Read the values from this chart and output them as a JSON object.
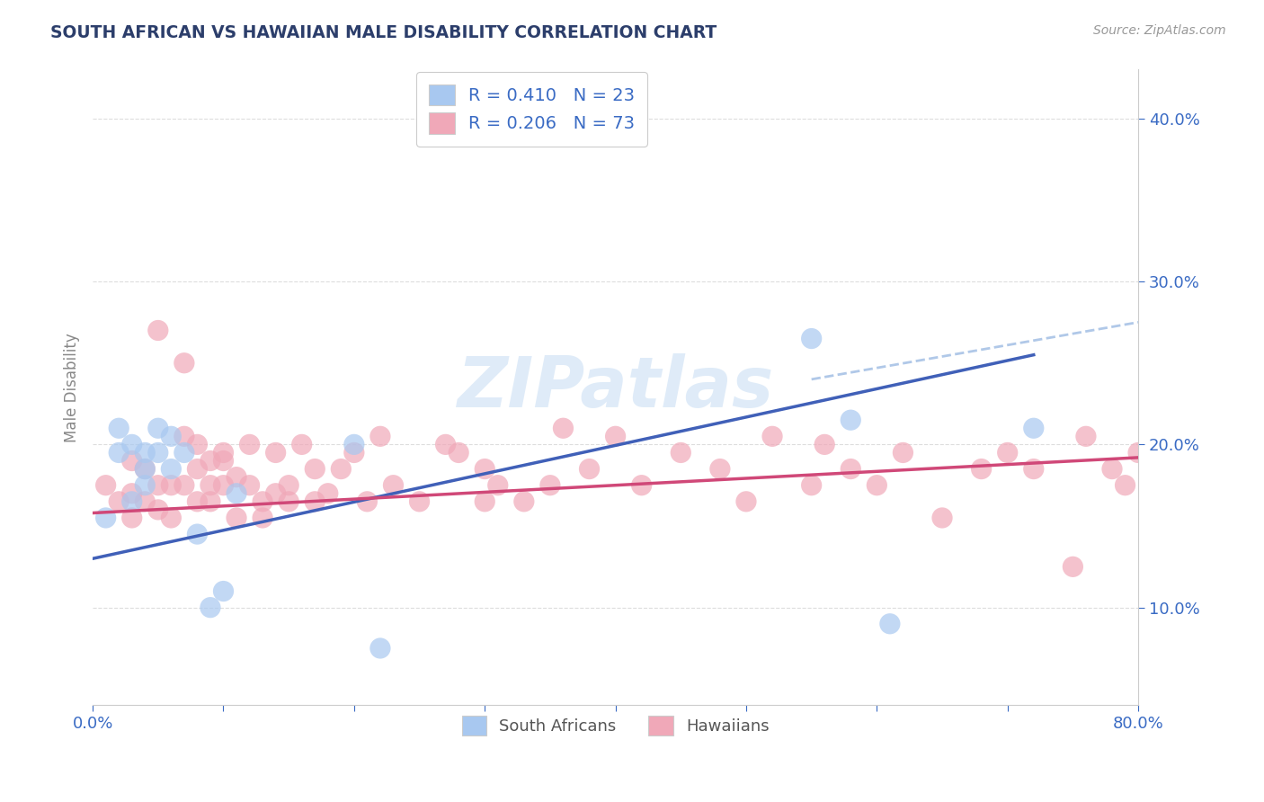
{
  "title": "SOUTH AFRICAN VS HAWAIIAN MALE DISABILITY CORRELATION CHART",
  "source": "Source: ZipAtlas.com",
  "xlabel": "",
  "ylabel": "Male Disability",
  "xlim": [
    0.0,
    0.8
  ],
  "ylim": [
    0.04,
    0.43
  ],
  "xticks": [
    0.0,
    0.1,
    0.2,
    0.3,
    0.4,
    0.5,
    0.6,
    0.7,
    0.8
  ],
  "yticks": [
    0.1,
    0.2,
    0.3,
    0.4
  ],
  "yticklabels": [
    "10.0%",
    "20.0%",
    "30.0%",
    "40.0%"
  ],
  "title_color": "#2c3e6b",
  "axis_label_color": "#888888",
  "tick_color": "#3a6bc4",
  "blue_color": "#a8c8f0",
  "pink_color": "#f0a8b8",
  "blue_line_color": "#4060b8",
  "pink_line_color": "#d04878",
  "dashed_line_color": "#b0c8e8",
  "legend_r1": "R = 0.410   N = 23",
  "legend_r2": "R = 0.206   N = 73",
  "legend_label1": "South Africans",
  "legend_label2": "Hawaiians",
  "watermark": "ZIPatlas",
  "blue_scatter_x": [
    0.01,
    0.02,
    0.02,
    0.03,
    0.03,
    0.04,
    0.04,
    0.04,
    0.05,
    0.05,
    0.06,
    0.06,
    0.07,
    0.08,
    0.09,
    0.1,
    0.11,
    0.2,
    0.22,
    0.55,
    0.58,
    0.61,
    0.72
  ],
  "blue_scatter_y": [
    0.155,
    0.195,
    0.21,
    0.165,
    0.2,
    0.195,
    0.185,
    0.175,
    0.21,
    0.195,
    0.205,
    0.185,
    0.195,
    0.145,
    0.1,
    0.11,
    0.17,
    0.2,
    0.075,
    0.265,
    0.215,
    0.09,
    0.21
  ],
  "pink_scatter_x": [
    0.01,
    0.02,
    0.03,
    0.03,
    0.03,
    0.04,
    0.04,
    0.05,
    0.05,
    0.05,
    0.06,
    0.06,
    0.07,
    0.07,
    0.07,
    0.08,
    0.08,
    0.08,
    0.09,
    0.09,
    0.09,
    0.1,
    0.1,
    0.1,
    0.11,
    0.11,
    0.12,
    0.12,
    0.13,
    0.13,
    0.14,
    0.14,
    0.15,
    0.15,
    0.16,
    0.17,
    0.17,
    0.18,
    0.19,
    0.2,
    0.21,
    0.22,
    0.23,
    0.25,
    0.27,
    0.28,
    0.3,
    0.3,
    0.31,
    0.33,
    0.35,
    0.36,
    0.38,
    0.4,
    0.42,
    0.45,
    0.48,
    0.5,
    0.52,
    0.55,
    0.56,
    0.58,
    0.6,
    0.62,
    0.65,
    0.68,
    0.7,
    0.72,
    0.75,
    0.76,
    0.78,
    0.79,
    0.8
  ],
  "pink_scatter_y": [
    0.175,
    0.165,
    0.19,
    0.17,
    0.155,
    0.165,
    0.185,
    0.27,
    0.175,
    0.16,
    0.175,
    0.155,
    0.175,
    0.25,
    0.205,
    0.185,
    0.165,
    0.2,
    0.19,
    0.175,
    0.165,
    0.19,
    0.175,
    0.195,
    0.18,
    0.155,
    0.175,
    0.2,
    0.165,
    0.155,
    0.17,
    0.195,
    0.175,
    0.165,
    0.2,
    0.165,
    0.185,
    0.17,
    0.185,
    0.195,
    0.165,
    0.205,
    0.175,
    0.165,
    0.2,
    0.195,
    0.185,
    0.165,
    0.175,
    0.165,
    0.175,
    0.21,
    0.185,
    0.205,
    0.175,
    0.195,
    0.185,
    0.165,
    0.205,
    0.175,
    0.2,
    0.185,
    0.175,
    0.195,
    0.155,
    0.185,
    0.195,
    0.185,
    0.125,
    0.205,
    0.185,
    0.175,
    0.195
  ],
  "blue_line_x": [
    0.0,
    0.72
  ],
  "blue_line_y": [
    0.13,
    0.255
  ],
  "pink_line_x": [
    0.0,
    0.8
  ],
  "pink_line_y": [
    0.158,
    0.192
  ],
  "dashed_line_x": [
    0.55,
    0.8
  ],
  "dashed_line_y": [
    0.24,
    0.275
  ]
}
